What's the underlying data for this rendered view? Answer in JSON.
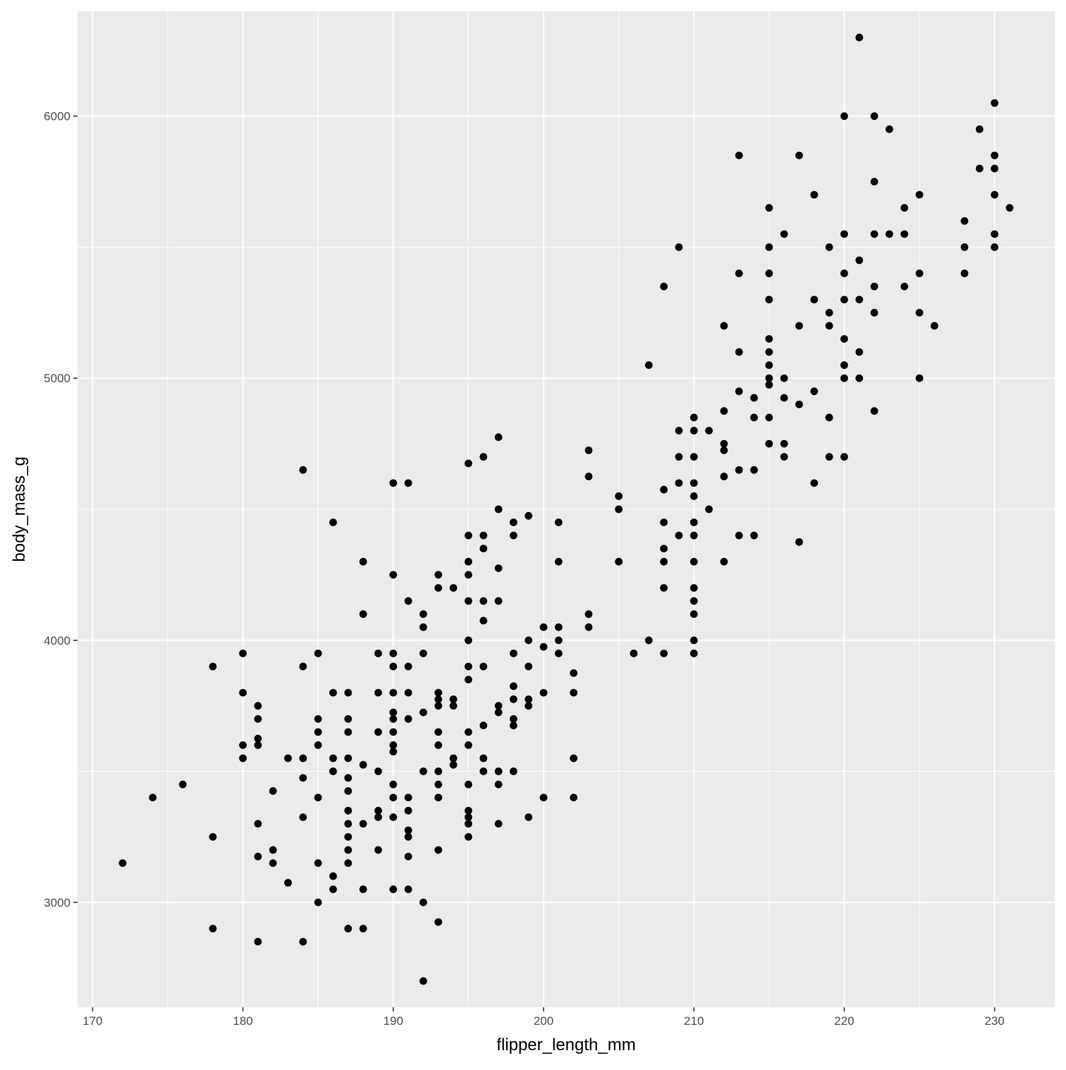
{
  "chart_data": {
    "type": "scatter",
    "xlabel": "flipper_length_mm",
    "ylabel": "body_mass_g",
    "xlim": [
      169,
      234
    ],
    "ylim": [
      2600,
      6400
    ],
    "x_ticks": [
      170,
      180,
      190,
      200,
      210,
      220,
      230
    ],
    "y_ticks": [
      3000,
      4000,
      5000,
      6000
    ],
    "x_minor_ticks": [
      175,
      185,
      195,
      205,
      215,
      225
    ],
    "y_minor_ticks": [
      3500,
      4500,
      5500
    ],
    "grid": true,
    "colors": {
      "panel": "#ebebeb",
      "grid": "#ffffff",
      "point": "#000000",
      "tick_label": "#4d4d4d",
      "axis_title": "#000000"
    },
    "points": [
      {
        "x": 172,
        "y": 3150
      },
      {
        "x": 174,
        "y": 3400
      },
      {
        "x": 176,
        "y": 3450
      },
      {
        "x": 178,
        "y": 3250
      },
      {
        "x": 178,
        "y": 3900
      },
      {
        "x": 178,
        "y": 2900
      },
      {
        "x": 180,
        "y": 3950
      },
      {
        "x": 180,
        "y": 3800
      },
      {
        "x": 180,
        "y": 3600
      },
      {
        "x": 180,
        "y": 3550
      },
      {
        "x": 181,
        "y": 3750
      },
      {
        "x": 181,
        "y": 3700
      },
      {
        "x": 181,
        "y": 3625
      },
      {
        "x": 181,
        "y": 3600
      },
      {
        "x": 181,
        "y": 3300
      },
      {
        "x": 181,
        "y": 3175
      },
      {
        "x": 181,
        "y": 2850
      },
      {
        "x": 182,
        "y": 3425
      },
      {
        "x": 182,
        "y": 3200
      },
      {
        "x": 182,
        "y": 3150
      },
      {
        "x": 183,
        "y": 3550
      },
      {
        "x": 183,
        "y": 3075
      },
      {
        "x": 184,
        "y": 4650
      },
      {
        "x": 184,
        "y": 3900
      },
      {
        "x": 184,
        "y": 3550
      },
      {
        "x": 184,
        "y": 3475
      },
      {
        "x": 184,
        "y": 3325
      },
      {
        "x": 184,
        "y": 2850
      },
      {
        "x": 185,
        "y": 3950
      },
      {
        "x": 185,
        "y": 3700
      },
      {
        "x": 185,
        "y": 3650
      },
      {
        "x": 185,
        "y": 3600
      },
      {
        "x": 185,
        "y": 3400
      },
      {
        "x": 185,
        "y": 3150
      },
      {
        "x": 185,
        "y": 3000
      },
      {
        "x": 186,
        "y": 4450
      },
      {
        "x": 186,
        "y": 3800
      },
      {
        "x": 186,
        "y": 3550
      },
      {
        "x": 186,
        "y": 3500
      },
      {
        "x": 186,
        "y": 3100
      },
      {
        "x": 186,
        "y": 3050
      },
      {
        "x": 187,
        "y": 3800
      },
      {
        "x": 187,
        "y": 3700
      },
      {
        "x": 187,
        "y": 3650
      },
      {
        "x": 187,
        "y": 3550
      },
      {
        "x": 187,
        "y": 3475
      },
      {
        "x": 187,
        "y": 3425
      },
      {
        "x": 187,
        "y": 3350
      },
      {
        "x": 187,
        "y": 3300
      },
      {
        "x": 187,
        "y": 3250
      },
      {
        "x": 187,
        "y": 3200
      },
      {
        "x": 187,
        "y": 3150
      },
      {
        "x": 187,
        "y": 2900
      },
      {
        "x": 188,
        "y": 4300
      },
      {
        "x": 188,
        "y": 4100
      },
      {
        "x": 188,
        "y": 3525
      },
      {
        "x": 188,
        "y": 3300
      },
      {
        "x": 188,
        "y": 3050
      },
      {
        "x": 188,
        "y": 2900
      },
      {
        "x": 189,
        "y": 3950
      },
      {
        "x": 189,
        "y": 3800
      },
      {
        "x": 189,
        "y": 3650
      },
      {
        "x": 189,
        "y": 3500
      },
      {
        "x": 189,
        "y": 3350
      },
      {
        "x": 189,
        "y": 3325
      },
      {
        "x": 189,
        "y": 3200
      },
      {
        "x": 190,
        "y": 4600
      },
      {
        "x": 190,
        "y": 4250
      },
      {
        "x": 190,
        "y": 3950
      },
      {
        "x": 190,
        "y": 3900
      },
      {
        "x": 190,
        "y": 3800
      },
      {
        "x": 190,
        "y": 3725
      },
      {
        "x": 190,
        "y": 3700
      },
      {
        "x": 190,
        "y": 3650
      },
      {
        "x": 190,
        "y": 3600
      },
      {
        "x": 190,
        "y": 3575
      },
      {
        "x": 190,
        "y": 3450
      },
      {
        "x": 190,
        "y": 3400
      },
      {
        "x": 190,
        "y": 3325
      },
      {
        "x": 190,
        "y": 3050
      },
      {
        "x": 191,
        "y": 4600
      },
      {
        "x": 191,
        "y": 4150
      },
      {
        "x": 191,
        "y": 3900
      },
      {
        "x": 191,
        "y": 3800
      },
      {
        "x": 191,
        "y": 3700
      },
      {
        "x": 191,
        "y": 3400
      },
      {
        "x": 191,
        "y": 3350
      },
      {
        "x": 191,
        "y": 3275
      },
      {
        "x": 191,
        "y": 3250
      },
      {
        "x": 191,
        "y": 3175
      },
      {
        "x": 191,
        "y": 3050
      },
      {
        "x": 192,
        "y": 4100
      },
      {
        "x": 192,
        "y": 4050
      },
      {
        "x": 192,
        "y": 3950
      },
      {
        "x": 192,
        "y": 3725
      },
      {
        "x": 192,
        "y": 3500
      },
      {
        "x": 192,
        "y": 3000
      },
      {
        "x": 192,
        "y": 2700
      },
      {
        "x": 193,
        "y": 4250
      },
      {
        "x": 193,
        "y": 4200
      },
      {
        "x": 193,
        "y": 3800
      },
      {
        "x": 193,
        "y": 3775
      },
      {
        "x": 193,
        "y": 3750
      },
      {
        "x": 193,
        "y": 3650
      },
      {
        "x": 193,
        "y": 3600
      },
      {
        "x": 193,
        "y": 3500
      },
      {
        "x": 193,
        "y": 3450
      },
      {
        "x": 193,
        "y": 3400
      },
      {
        "x": 193,
        "y": 3200
      },
      {
        "x": 193,
        "y": 2925
      },
      {
        "x": 194,
        "y": 4200
      },
      {
        "x": 194,
        "y": 3775
      },
      {
        "x": 194,
        "y": 3750
      },
      {
        "x": 194,
        "y": 3550
      },
      {
        "x": 194,
        "y": 3525
      },
      {
        "x": 195,
        "y": 4675
      },
      {
        "x": 195,
        "y": 4400
      },
      {
        "x": 195,
        "y": 4300
      },
      {
        "x": 195,
        "y": 4250
      },
      {
        "x": 195,
        "y": 4150
      },
      {
        "x": 195,
        "y": 4000
      },
      {
        "x": 195,
        "y": 3900
      },
      {
        "x": 195,
        "y": 3850
      },
      {
        "x": 195,
        "y": 3650
      },
      {
        "x": 195,
        "y": 3600
      },
      {
        "x": 195,
        "y": 3450
      },
      {
        "x": 195,
        "y": 3350
      },
      {
        "x": 195,
        "y": 3325
      },
      {
        "x": 195,
        "y": 3300
      },
      {
        "x": 195,
        "y": 3250
      },
      {
        "x": 196,
        "y": 4700
      },
      {
        "x": 196,
        "y": 4400
      },
      {
        "x": 196,
        "y": 4350
      },
      {
        "x": 196,
        "y": 4150
      },
      {
        "x": 196,
        "y": 4075
      },
      {
        "x": 196,
        "y": 3900
      },
      {
        "x": 196,
        "y": 3675
      },
      {
        "x": 196,
        "y": 3550
      },
      {
        "x": 196,
        "y": 3500
      },
      {
        "x": 197,
        "y": 4775
      },
      {
        "x": 197,
        "y": 4500
      },
      {
        "x": 197,
        "y": 4275
      },
      {
        "x": 197,
        "y": 4150
      },
      {
        "x": 197,
        "y": 3750
      },
      {
        "x": 197,
        "y": 3725
      },
      {
        "x": 197,
        "y": 3500
      },
      {
        "x": 197,
        "y": 3450
      },
      {
        "x": 197,
        "y": 3300
      },
      {
        "x": 198,
        "y": 4450
      },
      {
        "x": 198,
        "y": 4400
      },
      {
        "x": 198,
        "y": 3950
      },
      {
        "x": 198,
        "y": 3825
      },
      {
        "x": 198,
        "y": 3775
      },
      {
        "x": 198,
        "y": 3700
      },
      {
        "x": 198,
        "y": 3675
      },
      {
        "x": 198,
        "y": 3500
      },
      {
        "x": 199,
        "y": 4475
      },
      {
        "x": 199,
        "y": 4000
      },
      {
        "x": 199,
        "y": 3900
      },
      {
        "x": 199,
        "y": 3775
      },
      {
        "x": 199,
        "y": 3750
      },
      {
        "x": 199,
        "y": 3325
      },
      {
        "x": 200,
        "y": 4050
      },
      {
        "x": 200,
        "y": 3975
      },
      {
        "x": 200,
        "y": 3800
      },
      {
        "x": 200,
        "y": 3400
      },
      {
        "x": 201,
        "y": 4450
      },
      {
        "x": 201,
        "y": 4300
      },
      {
        "x": 201,
        "y": 4050
      },
      {
        "x": 201,
        "y": 4000
      },
      {
        "x": 201,
        "y": 3950
      },
      {
        "x": 202,
        "y": 3875
      },
      {
        "x": 202,
        "y": 3800
      },
      {
        "x": 202,
        "y": 3550
      },
      {
        "x": 202,
        "y": 3400
      },
      {
        "x": 203,
        "y": 4725
      },
      {
        "x": 203,
        "y": 4625
      },
      {
        "x": 203,
        "y": 4100
      },
      {
        "x": 203,
        "y": 4050
      },
      {
        "x": 205,
        "y": 4550
      },
      {
        "x": 205,
        "y": 4500
      },
      {
        "x": 205,
        "y": 4300
      },
      {
        "x": 206,
        "y": 3950
      },
      {
        "x": 207,
        "y": 5050
      },
      {
        "x": 207,
        "y": 4000
      },
      {
        "x": 208,
        "y": 5350
      },
      {
        "x": 208,
        "y": 4575
      },
      {
        "x": 208,
        "y": 4450
      },
      {
        "x": 208,
        "y": 4350
      },
      {
        "x": 208,
        "y": 4300
      },
      {
        "x": 208,
        "y": 4200
      },
      {
        "x": 208,
        "y": 3950
      },
      {
        "x": 209,
        "y": 5500
      },
      {
        "x": 209,
        "y": 4800
      },
      {
        "x": 209,
        "y": 4700
      },
      {
        "x": 209,
        "y": 4600
      },
      {
        "x": 209,
        "y": 4400
      },
      {
        "x": 210,
        "y": 4850
      },
      {
        "x": 210,
        "y": 4800
      },
      {
        "x": 210,
        "y": 4700
      },
      {
        "x": 210,
        "y": 4600
      },
      {
        "x": 210,
        "y": 4550
      },
      {
        "x": 210,
        "y": 4450
      },
      {
        "x": 210,
        "y": 4400
      },
      {
        "x": 210,
        "y": 4300
      },
      {
        "x": 210,
        "y": 4200
      },
      {
        "x": 210,
        "y": 4150
      },
      {
        "x": 210,
        "y": 4100
      },
      {
        "x": 210,
        "y": 4000
      },
      {
        "x": 210,
        "y": 3950
      },
      {
        "x": 211,
        "y": 4800
      },
      {
        "x": 211,
        "y": 4500
      },
      {
        "x": 212,
        "y": 5200
      },
      {
        "x": 212,
        "y": 4875
      },
      {
        "x": 212,
        "y": 4750
      },
      {
        "x": 212,
        "y": 4725
      },
      {
        "x": 212,
        "y": 4625
      },
      {
        "x": 212,
        "y": 4300
      },
      {
        "x": 213,
        "y": 5850
      },
      {
        "x": 213,
        "y": 5400
      },
      {
        "x": 213,
        "y": 5100
      },
      {
        "x": 213,
        "y": 4950
      },
      {
        "x": 213,
        "y": 4650
      },
      {
        "x": 213,
        "y": 4400
      },
      {
        "x": 214,
        "y": 4925
      },
      {
        "x": 214,
        "y": 4850
      },
      {
        "x": 214,
        "y": 4650
      },
      {
        "x": 214,
        "y": 4400
      },
      {
        "x": 215,
        "y": 5650
      },
      {
        "x": 215,
        "y": 5500
      },
      {
        "x": 215,
        "y": 5400
      },
      {
        "x": 215,
        "y": 5300
      },
      {
        "x": 215,
        "y": 5150
      },
      {
        "x": 215,
        "y": 5100
      },
      {
        "x": 215,
        "y": 5050
      },
      {
        "x": 215,
        "y": 5000
      },
      {
        "x": 215,
        "y": 4975
      },
      {
        "x": 215,
        "y": 4850
      },
      {
        "x": 215,
        "y": 4750
      },
      {
        "x": 216,
        "y": 5550
      },
      {
        "x": 216,
        "y": 5000
      },
      {
        "x": 216,
        "y": 4925
      },
      {
        "x": 216,
        "y": 4750
      },
      {
        "x": 216,
        "y": 4700
      },
      {
        "x": 217,
        "y": 5850
      },
      {
        "x": 217,
        "y": 5200
      },
      {
        "x": 217,
        "y": 4900
      },
      {
        "x": 217,
        "y": 4375
      },
      {
        "x": 218,
        "y": 5700
      },
      {
        "x": 218,
        "y": 5300
      },
      {
        "x": 218,
        "y": 4950
      },
      {
        "x": 218,
        "y": 4600
      },
      {
        "x": 219,
        "y": 5500
      },
      {
        "x": 219,
        "y": 5250
      },
      {
        "x": 219,
        "y": 5200
      },
      {
        "x": 219,
        "y": 4850
      },
      {
        "x": 219,
        "y": 4700
      },
      {
        "x": 220,
        "y": 6000
      },
      {
        "x": 220,
        "y": 5550
      },
      {
        "x": 220,
        "y": 5400
      },
      {
        "x": 220,
        "y": 5300
      },
      {
        "x": 220,
        "y": 5150
      },
      {
        "x": 220,
        "y": 5050
      },
      {
        "x": 220,
        "y": 5000
      },
      {
        "x": 220,
        "y": 4700
      },
      {
        "x": 221,
        "y": 6300
      },
      {
        "x": 221,
        "y": 5450
      },
      {
        "x": 221,
        "y": 5300
      },
      {
        "x": 221,
        "y": 5100
      },
      {
        "x": 221,
        "y": 5000
      },
      {
        "x": 222,
        "y": 6000
      },
      {
        "x": 222,
        "y": 5750
      },
      {
        "x": 222,
        "y": 5550
      },
      {
        "x": 222,
        "y": 5350
      },
      {
        "x": 222,
        "y": 5250
      },
      {
        "x": 222,
        "y": 4875
      },
      {
        "x": 223,
        "y": 5950
      },
      {
        "x": 223,
        "y": 5550
      },
      {
        "x": 224,
        "y": 5650
      },
      {
        "x": 224,
        "y": 5550
      },
      {
        "x": 224,
        "y": 5350
      },
      {
        "x": 225,
        "y": 5700
      },
      {
        "x": 225,
        "y": 5400
      },
      {
        "x": 225,
        "y": 5250
      },
      {
        "x": 225,
        "y": 5000
      },
      {
        "x": 226,
        "y": 5200
      },
      {
        "x": 228,
        "y": 5600
      },
      {
        "x": 228,
        "y": 5500
      },
      {
        "x": 228,
        "y": 5400
      },
      {
        "x": 229,
        "y": 5950
      },
      {
        "x": 229,
        "y": 5800
      },
      {
        "x": 230,
        "y": 6050
      },
      {
        "x": 230,
        "y": 5850
      },
      {
        "x": 230,
        "y": 5800
      },
      {
        "x": 230,
        "y": 5700
      },
      {
        "x": 230,
        "y": 5550
      },
      {
        "x": 230,
        "y": 5500
      },
      {
        "x": 231,
        "y": 5650
      }
    ]
  }
}
